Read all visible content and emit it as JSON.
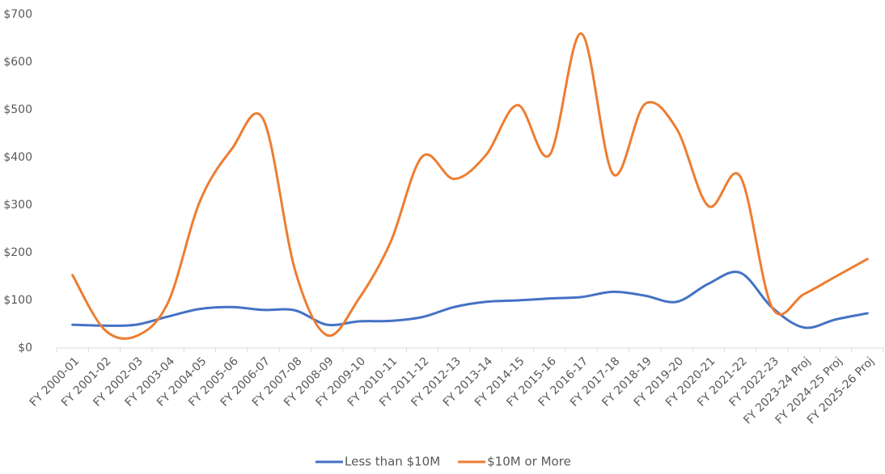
{
  "chart_data": {
    "type": "line",
    "categories": [
      "FY 2000-01",
      "FY 2001-02",
      "FY 2002-03",
      "FY 2003-04",
      "FY 2004-05",
      "FY 2005-06",
      "FY 2006-07",
      "FY 2007-08",
      "FY 2008-09",
      "FY 2009-10",
      "FY 2010-11",
      "FY 2011-12",
      "FY 2012-13",
      "FY 2013-14",
      "FY 2014-15",
      "FY 2015-16",
      "FY 2016-17",
      "FY 2017-18",
      "FY 2018-19",
      "FY 2019-20",
      "FY 2020-21",
      "FY 2021-22",
      "FY 2022-23",
      "FY 2023-24 Proj",
      "FY 2024-25 Proj",
      "FY 2025-26 Proj"
    ],
    "series": [
      {
        "name": "Less than $10M",
        "color": "#4472c4",
        "values": [
          49,
          47,
          49,
          66,
          82,
          86,
          80,
          79,
          49,
          56,
          57,
          65,
          86,
          97,
          100,
          104,
          107,
          118,
          110,
          97,
          135,
          158,
          85,
          43,
          60,
          73
        ]
      },
      {
        "name": "$10M or More",
        "color": "#ed7d31",
        "values": [
          153,
          39,
          25,
          95,
          307,
          417,
          480,
          163,
          27,
          103,
          222,
          402,
          355,
          405,
          510,
          405,
          660,
          365,
          512,
          460,
          298,
          360,
          85,
          113,
          150,
          187
        ]
      }
    ],
    "ylim": [
      0,
      700
    ],
    "yticks": [
      {
        "value": 0,
        "label": "$0"
      },
      {
        "value": 100,
        "label": "$100"
      },
      {
        "value": 200,
        "label": "$200"
      },
      {
        "value": 300,
        "label": "$300"
      },
      {
        "value": 400,
        "label": "$400"
      },
      {
        "value": 500,
        "label": "$500"
      },
      {
        "value": 600,
        "label": "$600"
      },
      {
        "value": 700,
        "label": "$700"
      }
    ],
    "legend": "bottom"
  }
}
